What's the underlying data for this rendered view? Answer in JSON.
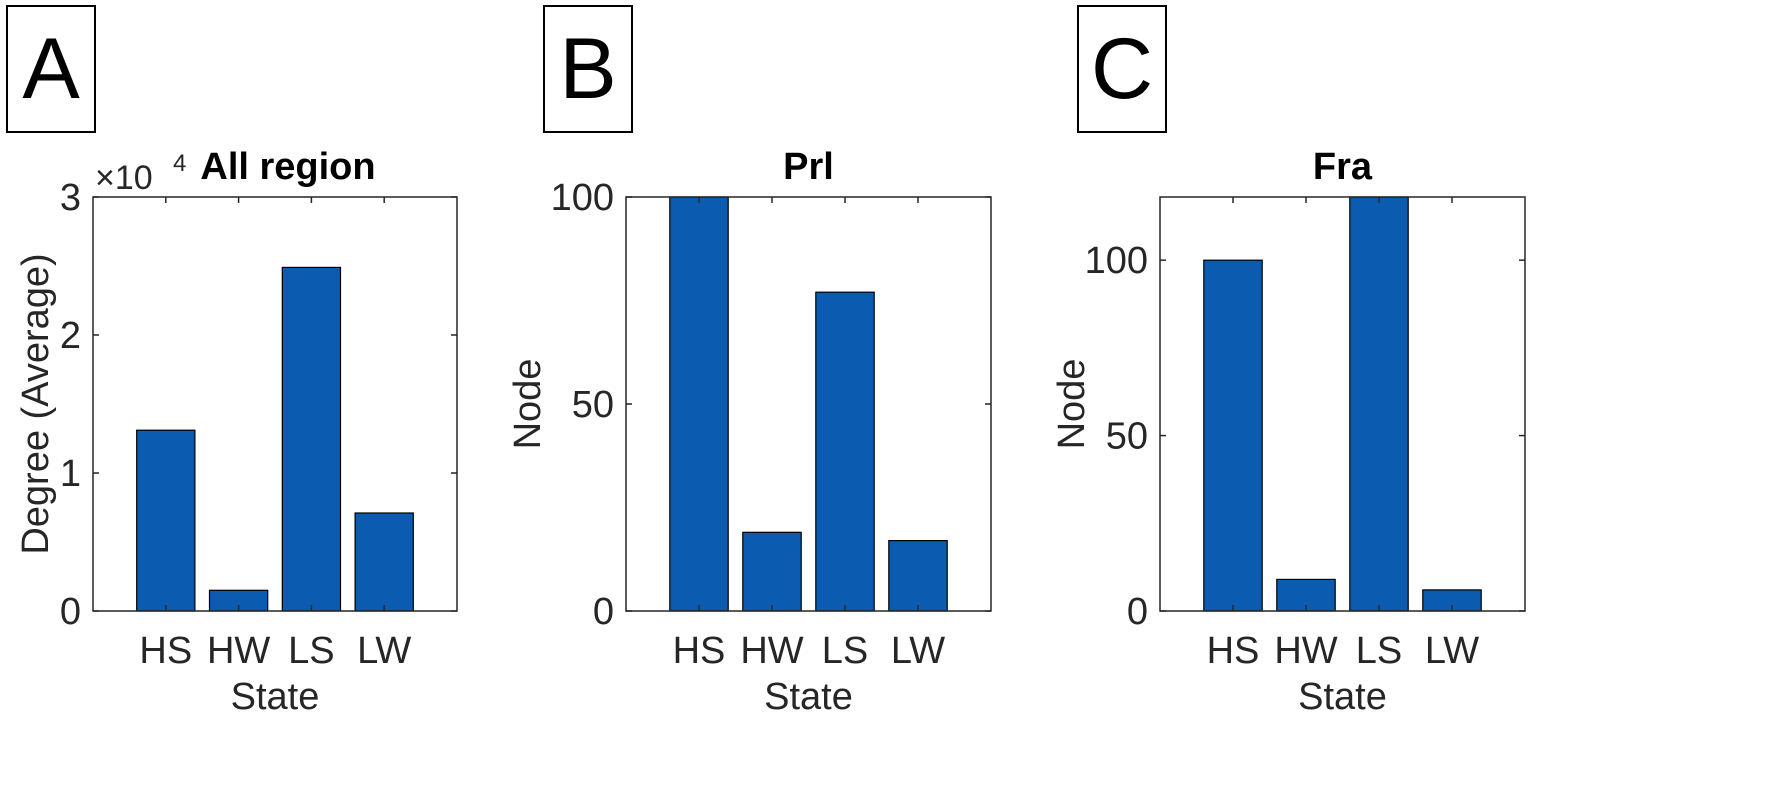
{
  "panel_labels": [
    "A",
    "B",
    "C"
  ],
  "chart_data": [
    {
      "type": "bar",
      "title": "All region",
      "xlabel": "State",
      "ylabel": "Degree (Average)",
      "exponent_label": "×10",
      "exponent_power": "4",
      "categories": [
        "HS",
        "HW",
        "LS",
        "LW"
      ],
      "values": [
        13100,
        1500,
        24900,
        7100
      ],
      "ylim": [
        0,
        30000
      ],
      "yticks": [
        0,
        10000,
        20000,
        30000
      ],
      "ytick_labels": [
        "0",
        "1",
        "2",
        "3"
      ],
      "bar_color": "#0b5cb1",
      "grid": false
    },
    {
      "type": "bar",
      "title": "Prl",
      "xlabel": "State",
      "ylabel": "Node",
      "categories": [
        "HS",
        "HW",
        "LS",
        "LW"
      ],
      "values": [
        100,
        19,
        77,
        17
      ],
      "ylim": [
        0,
        100
      ],
      "yticks": [
        0,
        50,
        100
      ],
      "ytick_labels": [
        "0",
        "50",
        "100"
      ],
      "bar_color": "#0b5cb1",
      "grid": false
    },
    {
      "type": "bar",
      "title": "Fra",
      "xlabel": "State",
      "ylabel": "Node",
      "categories": [
        "HS",
        "HW",
        "LS",
        "LW"
      ],
      "values": [
        100,
        9,
        118,
        6
      ],
      "ylim": [
        0,
        118
      ],
      "yticks": [
        0,
        50,
        100
      ],
      "ytick_labels": [
        "0",
        "50",
        "100"
      ],
      "bar_color": "#0b5cb1",
      "grid": false
    }
  ]
}
